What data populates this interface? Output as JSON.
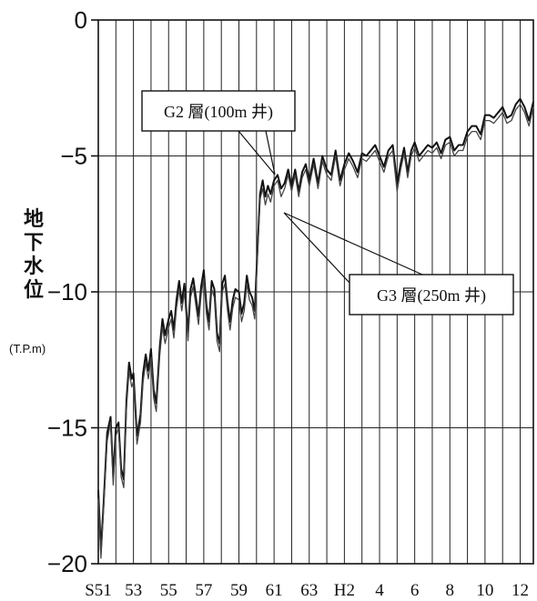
{
  "chart_data": {
    "type": "line",
    "ylabel_chars": [
      "地",
      "下",
      "水",
      "位"
    ],
    "yunit": "(T.P.m)",
    "ylim": [
      -20,
      0
    ],
    "yticks": [
      0,
      -5,
      -10,
      -15,
      -20
    ],
    "xtick_labels": [
      "S51",
      "53",
      "55",
      "57",
      "59",
      "61",
      "63",
      "H2",
      "4",
      "6",
      "8",
      "10",
      "12"
    ],
    "x_years": [
      1976,
      1978,
      1980,
      1982,
      1984,
      1986,
      1988,
      1990,
      1992,
      1994,
      1996,
      1998,
      2000
    ],
    "grid": "vertical lines yearly, horizontal lines every 5 m",
    "series": [
      {
        "name": "G2 層(100m 井)",
        "x": [
          1976.0,
          1976.15,
          1976.3,
          1976.5,
          1976.7,
          1976.85,
          1977.0,
          1977.15,
          1977.3,
          1977.45,
          1977.6,
          1977.75,
          1977.9,
          1978.0,
          1978.2,
          1978.4,
          1978.55,
          1978.7,
          1978.85,
          1979.0,
          1979.15,
          1979.3,
          1979.5,
          1979.65,
          1979.8,
          1980.0,
          1980.15,
          1980.3,
          1980.45,
          1980.6,
          1980.75,
          1980.9,
          1981.1,
          1981.25,
          1981.4,
          1981.55,
          1981.7,
          1981.85,
          1982.0,
          1982.15,
          1982.3,
          1982.45,
          1982.6,
          1982.75,
          1982.9,
          1983.05,
          1983.2,
          1983.35,
          1983.5,
          1983.65,
          1983.8,
          1984.0,
          1984.15,
          1984.3,
          1984.45,
          1984.6,
          1984.75,
          1984.9,
          1985.05,
          1985.2,
          1985.35,
          1985.5,
          1985.65,
          1985.8,
          1986.0,
          1986.2,
          1986.4,
          1986.6,
          1986.8,
          1987.0,
          1987.2,
          1987.4,
          1987.6,
          1987.8,
          1988.0,
          1988.25,
          1988.5,
          1988.75,
          1989.0,
          1989.25,
          1989.5,
          1989.75,
          1990.0,
          1990.25,
          1990.5,
          1990.75,
          1991.0,
          1991.25,
          1991.5,
          1991.75,
          1992.0,
          1992.25,
          1992.5,
          1992.75,
          1993.0,
          1993.2,
          1993.4,
          1993.6,
          1993.8,
          1994.0,
          1994.25,
          1994.5,
          1994.75,
          1995.0,
          1995.25,
          1995.5,
          1995.75,
          1996.0,
          1996.25,
          1996.5,
          1996.75,
          1997.0,
          1997.25,
          1997.5,
          1997.75,
          1998.0,
          1998.25,
          1998.5,
          1998.75,
          1999.0,
          1999.25,
          1999.5,
          1999.75,
          2000.0,
          2000.25,
          2000.5,
          2000.75
        ],
        "y": [
          -17.3,
          -19.5,
          -17.8,
          -15.2,
          -14.6,
          -16.8,
          -15.0,
          -14.8,
          -16.5,
          -16.9,
          -14.0,
          -12.6,
          -13.2,
          -13.0,
          -15.3,
          -14.5,
          -13.0,
          -12.3,
          -12.9,
          -12.1,
          -13.6,
          -14.1,
          -12.0,
          -11.0,
          -11.6,
          -11.0,
          -10.7,
          -11.4,
          -10.3,
          -9.6,
          -10.4,
          -9.7,
          -11.5,
          -9.9,
          -9.5,
          -10.2,
          -10.9,
          -9.8,
          -9.2,
          -10.5,
          -11.1,
          -9.6,
          -9.9,
          -11.5,
          -11.9,
          -9.7,
          -9.4,
          -10.4,
          -11.1,
          -10.3,
          -9.9,
          -10.0,
          -10.8,
          -10.4,
          -9.4,
          -10.0,
          -10.2,
          -10.7,
          -8.5,
          -6.4,
          -5.9,
          -6.5,
          -6.1,
          -6.4,
          -5.9,
          -5.7,
          -6.2,
          -6.0,
          -5.5,
          -6.1,
          -5.5,
          -6.3,
          -5.6,
          -5.3,
          -5.9,
          -5.1,
          -6.0,
          -5.0,
          -5.5,
          -5.7,
          -4.8,
          -5.9,
          -5.3,
          -4.9,
          -5.2,
          -5.6,
          -4.9,
          -5.0,
          -4.8,
          -4.6,
          -5.0,
          -5.4,
          -4.8,
          -4.6,
          -6.0,
          -5.3,
          -4.7,
          -5.6,
          -4.8,
          -4.5,
          -5.0,
          -4.8,
          -4.6,
          -4.7,
          -4.5,
          -4.9,
          -4.4,
          -4.3,
          -4.8,
          -4.6,
          -4.6,
          -4.1,
          -3.9,
          -3.9,
          -4.2,
          -3.5,
          -3.5,
          -3.6,
          -3.4,
          -3.2,
          -3.6,
          -3.5,
          -3.1,
          -2.9,
          -3.2,
          -3.7,
          -3.0
        ]
      },
      {
        "name": "G3 層(250m 井)",
        "x": [
          1976.0,
          1976.15,
          1976.3,
          1976.5,
          1976.7,
          1976.85,
          1977.0,
          1977.15,
          1977.3,
          1977.45,
          1977.6,
          1977.75,
          1977.9,
          1978.0,
          1978.2,
          1978.4,
          1978.55,
          1978.7,
          1978.85,
          1979.0,
          1979.15,
          1979.3,
          1979.5,
          1979.65,
          1979.8,
          1980.0,
          1980.15,
          1980.3,
          1980.45,
          1980.6,
          1980.75,
          1980.9,
          1981.1,
          1981.25,
          1981.4,
          1981.55,
          1981.7,
          1981.85,
          1982.0,
          1982.15,
          1982.3,
          1982.45,
          1982.6,
          1982.75,
          1982.9,
          1983.05,
          1983.2,
          1983.35,
          1983.5,
          1983.65,
          1983.8,
          1984.0,
          1984.15,
          1984.3,
          1984.45,
          1984.6,
          1984.75,
          1984.9,
          1985.05,
          1985.2,
          1985.35,
          1985.5,
          1985.65,
          1985.8,
          1986.0,
          1986.2,
          1986.4,
          1986.6,
          1986.8,
          1987.0,
          1987.2,
          1987.4,
          1987.6,
          1987.8,
          1988.0,
          1988.25,
          1988.5,
          1988.75,
          1989.0,
          1989.25,
          1989.5,
          1989.75,
          1990.0,
          1990.25,
          1990.5,
          1990.75,
          1991.0,
          1991.25,
          1991.5,
          1991.75,
          1992.0,
          1992.25,
          1992.5,
          1992.75,
          1993.0,
          1993.2,
          1993.4,
          1993.6,
          1993.8,
          1994.0,
          1994.25,
          1994.5,
          1994.75,
          1995.0,
          1995.25,
          1995.5,
          1995.75,
          1996.0,
          1996.25,
          1996.5,
          1996.75,
          1997.0,
          1997.25,
          1997.5,
          1997.75,
          1998.0,
          1998.25,
          1998.5,
          1998.75,
          1999.0,
          1999.25,
          1999.5,
          1999.75,
          2000.0,
          2000.25,
          2000.5,
          2000.75
        ],
        "y": [
          -17.6,
          -19.8,
          -18.0,
          -15.5,
          -14.8,
          -17.1,
          -15.3,
          -15.0,
          -16.8,
          -17.2,
          -14.3,
          -12.9,
          -13.5,
          -13.3,
          -15.6,
          -14.8,
          -13.3,
          -12.6,
          -13.2,
          -12.4,
          -13.9,
          -14.4,
          -12.3,
          -11.3,
          -11.9,
          -11.3,
          -11.0,
          -11.7,
          -10.6,
          -9.9,
          -10.7,
          -10.0,
          -11.8,
          -10.2,
          -9.8,
          -10.5,
          -11.2,
          -10.1,
          -9.5,
          -10.8,
          -11.4,
          -9.9,
          -10.2,
          -11.8,
          -12.2,
          -10.0,
          -9.7,
          -10.7,
          -11.4,
          -10.6,
          -10.2,
          -10.3,
          -11.1,
          -10.7,
          -9.7,
          -10.3,
          -10.5,
          -11.0,
          -8.8,
          -6.6,
          -6.2,
          -6.8,
          -6.4,
          -6.7,
          -6.1,
          -5.9,
          -6.5,
          -6.2,
          -5.7,
          -6.3,
          -5.7,
          -6.5,
          -5.8,
          -5.5,
          -6.1,
          -5.3,
          -6.2,
          -5.2,
          -5.7,
          -5.9,
          -5.0,
          -6.1,
          -5.5,
          -5.1,
          -5.4,
          -5.8,
          -5.1,
          -5.2,
          -5.0,
          -4.8,
          -5.2,
          -5.6,
          -5.0,
          -4.8,
          -6.3,
          -5.5,
          -4.9,
          -5.8,
          -5.0,
          -4.7,
          -5.2,
          -5.0,
          -4.8,
          -4.9,
          -4.7,
          -5.1,
          -4.6,
          -4.5,
          -5.0,
          -4.8,
          -4.8,
          -4.3,
          -4.1,
          -4.1,
          -4.4,
          -3.7,
          -3.7,
          -3.8,
          -3.6,
          -3.4,
          -3.8,
          -3.7,
          -3.3,
          -3.1,
          -3.4,
          -3.9,
          -3.2
        ]
      }
    ]
  }
}
